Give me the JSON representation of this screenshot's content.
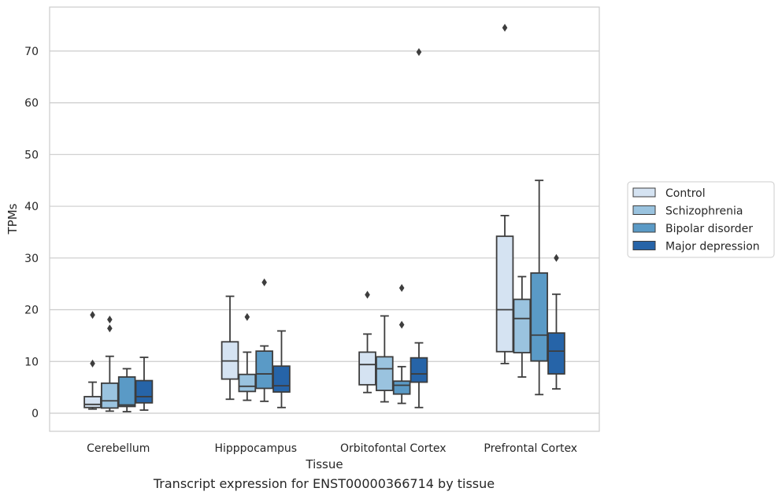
{
  "caption": "Transcript expression for ENST00000366714 by tissue",
  "chart_data": {
    "type": "box",
    "xlabel": "Tissue",
    "ylabel": "TPMs",
    "ylim": [
      -3.5,
      78.5
    ],
    "yticks": [
      0,
      10,
      20,
      30,
      40,
      50,
      60,
      70
    ],
    "grid": "horizontal",
    "legend_position": "right",
    "categories": [
      "Cerebellum",
      "Hipppocampus",
      "Orbitofontal Cortex",
      "Prefrontal Cortex"
    ],
    "series": [
      {
        "name": "Control",
        "color": "#d5e3f2",
        "boxes": [
          {
            "whisker_low": 0.8,
            "q1": 1.1,
            "median": 1.7,
            "q3": 3.2,
            "whisker_high": 6.0,
            "outliers": [
              19.0,
              9.6
            ]
          },
          {
            "whisker_low": 2.7,
            "q1": 6.6,
            "median": 10.1,
            "q3": 13.8,
            "whisker_high": 22.6,
            "outliers": []
          },
          {
            "whisker_low": 4.0,
            "q1": 5.5,
            "median": 9.4,
            "q3": 11.8,
            "whisker_high": 15.3,
            "outliers": [
              22.9
            ]
          },
          {
            "whisker_low": 9.6,
            "q1": 11.9,
            "median": 20.0,
            "q3": 34.2,
            "whisker_high": 38.2,
            "outliers": [
              74.5
            ]
          }
        ]
      },
      {
        "name": "Schizophrenia",
        "color": "#9ac3df",
        "boxes": [
          {
            "whisker_low": 0.4,
            "q1": 1.0,
            "median": 2.4,
            "q3": 5.8,
            "whisker_high": 11.0,
            "outliers": [
              18.1,
              16.4
            ]
          },
          {
            "whisker_low": 2.5,
            "q1": 4.2,
            "median": 5.2,
            "q3": 7.5,
            "whisker_high": 11.8,
            "outliers": [
              18.6
            ]
          },
          {
            "whisker_low": 2.2,
            "q1": 4.4,
            "median": 8.6,
            "q3": 10.9,
            "whisker_high": 18.8,
            "outliers": []
          },
          {
            "whisker_low": 7.0,
            "q1": 11.7,
            "median": 18.3,
            "q3": 22.0,
            "whisker_high": 26.4,
            "outliers": []
          }
        ]
      },
      {
        "name": "Bipolar disorder",
        "color": "#5a9ac6",
        "boxes": [
          {
            "whisker_low": 0.3,
            "q1": 1.3,
            "median": 1.6,
            "q3": 7.0,
            "whisker_high": 8.6,
            "outliers": []
          },
          {
            "whisker_low": 2.3,
            "q1": 4.8,
            "median": 7.6,
            "q3": 12.0,
            "whisker_high": 13.0,
            "outliers": [
              25.3
            ]
          },
          {
            "whisker_low": 1.9,
            "q1": 3.7,
            "median": 5.4,
            "q3": 6.2,
            "whisker_high": 9.0,
            "outliers": [
              24.2,
              17.1
            ]
          },
          {
            "whisker_low": 3.6,
            "q1": 10.1,
            "median": 15.1,
            "q3": 27.1,
            "whisker_high": 45.0,
            "outliers": []
          }
        ]
      },
      {
        "name": "Major depression",
        "color": "#2664a8",
        "boxes": [
          {
            "whisker_low": 0.6,
            "q1": 2.0,
            "median": 3.2,
            "q3": 6.3,
            "whisker_high": 10.8,
            "outliers": []
          },
          {
            "whisker_low": 1.1,
            "q1": 4.1,
            "median": 5.3,
            "q3": 9.1,
            "whisker_high": 15.9,
            "outliers": []
          },
          {
            "whisker_low": 1.1,
            "q1": 6.0,
            "median": 7.6,
            "q3": 10.7,
            "whisker_high": 13.6,
            "outliers": [
              69.8
            ]
          },
          {
            "whisker_low": 4.7,
            "q1": 7.6,
            "median": 12.0,
            "q3": 15.5,
            "whisker_high": 23.0,
            "outliers": [
              30.0
            ]
          }
        ]
      }
    ]
  }
}
